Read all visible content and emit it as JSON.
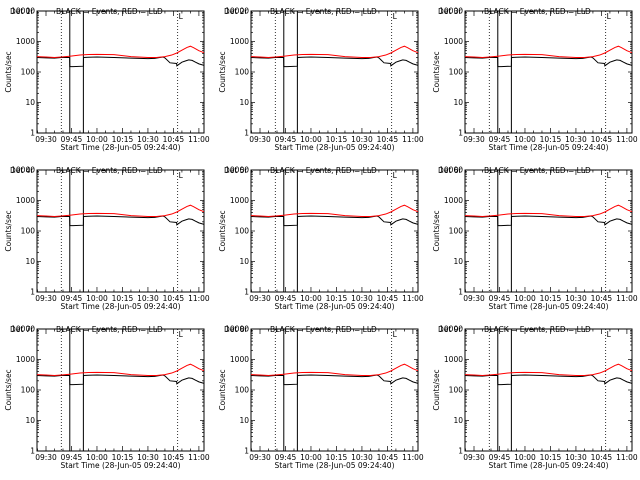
{
  "chart_data": {
    "type": "line",
    "grid": false,
    "xlabel": "Start Time (28-Jun-05 09:24:40)",
    "ylabel": "Counts/sec",
    "x_tick_labels": [
      "09:30",
      "09:45",
      "10:00",
      "10:15",
      "10:30",
      "10:45",
      "11:00"
    ],
    "x_ticks_minutes_since_0930": [
      0,
      15,
      30,
      45,
      60,
      75,
      90
    ],
    "xlim_minutes_since_0930": [
      -5.3,
      93
    ],
    "y_scale": "log",
    "ylim": [
      1,
      10000
    ],
    "y_tick_labels": [
      "1",
      "10",
      "100",
      "1000",
      "10000"
    ],
    "legend_text": "BLACK = Events, RED = LLD",
    "flag_label": "L",
    "legend": "top-right",
    "vertical_lines": {
      "dotted_minutes": [
        9,
        77.5
      ],
      "solid_minutes": [
        14,
        22
      ]
    },
    "panels": [
      {
        "title": "Det 1r"
      },
      {
        "title": "Det 2r"
      },
      {
        "title": "Det 3r"
      },
      {
        "title": "Det 4r"
      },
      {
        "title": "Det 5r"
      },
      {
        "title": "Det 6r"
      },
      {
        "title": "Det 7r"
      },
      {
        "title": "Det 8r"
      },
      {
        "title": "Det 9r"
      }
    ],
    "series": [
      {
        "name": "Events",
        "color": "#000000",
        "x": [
          -5.3,
          0,
          5,
          9,
          13.9,
          14,
          16,
          22,
          22.1,
          25,
          30,
          40,
          50,
          60,
          64,
          67,
          69,
          70,
          73,
          76.9,
          77,
          80,
          82,
          84,
          86,
          88,
          90,
          93
        ],
        "y": [
          300,
          290,
          285,
          300,
          300,
          150,
          150,
          155,
          300,
          305,
          310,
          300,
          285,
          275,
          280,
          300,
          310,
          290,
          200,
          190,
          160,
          210,
          230,
          250,
          240,
          210,
          185,
          165
        ]
      },
      {
        "name": "LLD",
        "color": "#ff0000",
        "x": [
          -5.3,
          0,
          5,
          9,
          14,
          20,
          25,
          30,
          40,
          50,
          60,
          65,
          70,
          74,
          77,
          80,
          83,
          85,
          87,
          90,
          93
        ],
        "y": [
          320,
          310,
          300,
          310,
          330,
          360,
          375,
          380,
          370,
          320,
          300,
          300,
          320,
          360,
          420,
          520,
          640,
          700,
          620,
          500,
          430
        ]
      }
    ]
  }
}
